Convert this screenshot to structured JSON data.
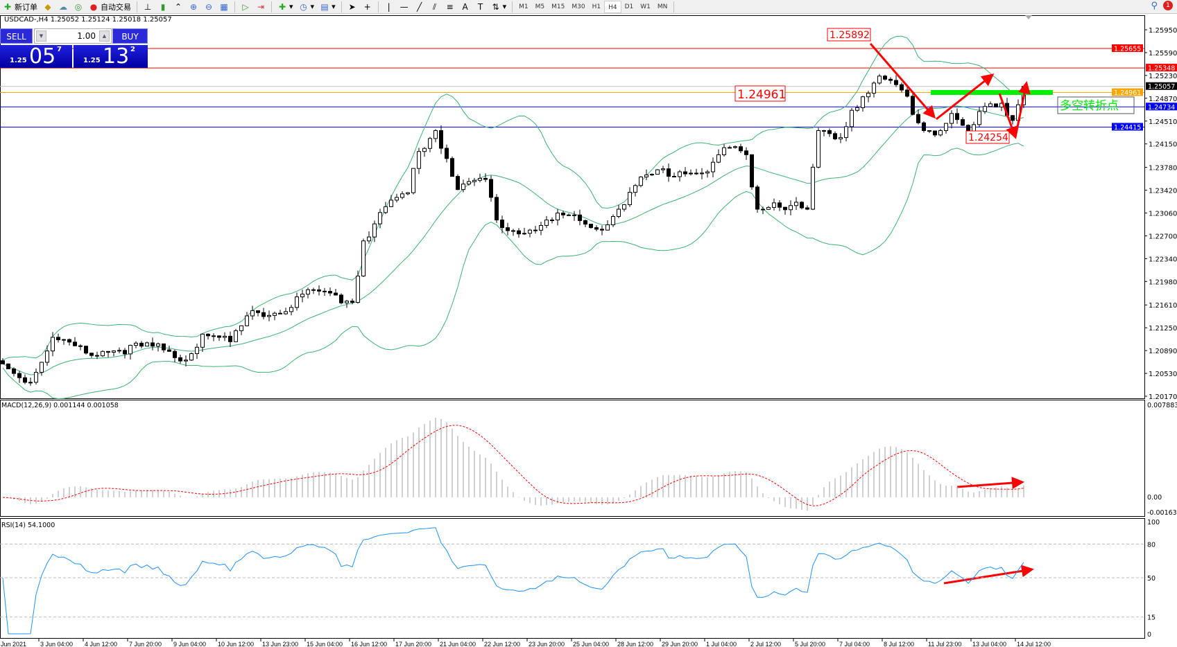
{
  "toolbar": {
    "new_order": "新订单",
    "auto_trading": "自动交易",
    "timeframes": [
      "M1",
      "M5",
      "M15",
      "M30",
      "H1",
      "H4",
      "D1",
      "W1",
      "MN"
    ],
    "active_timeframe": "H4",
    "notification_count": "1"
  },
  "chart": {
    "header": "USDCAD-,H4  1.25052 1.25124 1.25018 1.25057"
  },
  "trade_panel": {
    "sell_label": "SELL",
    "buy_label": "BUY",
    "lot": "1.00",
    "sell": {
      "prefix": "1.25",
      "big": "05",
      "sup": "7"
    },
    "buy": {
      "prefix": "1.25",
      "big": "13",
      "sup": "2"
    }
  },
  "annotations": {
    "high_label": "1.25892",
    "level_label": "1.24961",
    "low_label": "1.24254",
    "turning_point_label": "多空转折点",
    "arrow_color": "#ff0000",
    "turning_line_color": "#00ee00"
  },
  "chart_data": [
    {
      "type": "candlestick",
      "symbol": "USDCAD-",
      "timeframe": "H4",
      "close_path": [
        [
          0,
          1.2068
        ],
        [
          5,
          1.2039
        ],
        [
          9,
          1.211
        ],
        [
          15,
          1.2085
        ],
        [
          27,
          1.2096
        ],
        [
          33,
          1.2074
        ],
        [
          36,
          1.2115
        ],
        [
          41,
          1.2103
        ],
        [
          45,
          1.2152
        ],
        [
          50,
          1.2147
        ],
        [
          55,
          1.2185
        ],
        [
          63,
          1.2165
        ],
        [
          65,
          1.2262
        ],
        [
          69,
          1.2316
        ],
        [
          73,
          1.2338
        ],
        [
          75,
          1.2403
        ],
        [
          78,
          1.2436
        ],
        [
          80,
          1.2392
        ],
        [
          82,
          1.2343
        ],
        [
          87,
          1.2359
        ],
        [
          89,
          1.2295
        ],
        [
          93,
          1.2273
        ],
        [
          99,
          1.2295
        ],
        [
          100,
          1.2306
        ],
        [
          108,
          1.2279
        ],
        [
          111,
          1.2312
        ],
        [
          116,
          1.2366
        ],
        [
          122,
          1.2371
        ],
        [
          127,
          1.2371
        ],
        [
          130,
          1.2409
        ],
        [
          134,
          1.2398
        ],
        [
          136,
          1.2312
        ],
        [
          139,
          1.2322
        ],
        [
          145,
          1.2312
        ],
        [
          147,
          1.2436
        ],
        [
          151,
          1.2425
        ],
        [
          153,
          1.2468
        ],
        [
          157,
          1.2511
        ],
        [
          158,
          1.2522
        ],
        [
          162,
          1.25
        ],
        [
          166,
          1.2436
        ],
        [
          169,
          1.2436
        ],
        [
          171,
          1.2463
        ],
        [
          174,
          1.243
        ],
        [
          177,
          1.2474
        ],
        [
          180,
          1.2479
        ],
        [
          182,
          1.2452
        ],
        [
          184,
          1.25057
        ]
      ],
      "ylim": [
        1.2013,
        1.2618
      ],
      "price_ticks": [
        "1.25950",
        "1.25590",
        "1.25230",
        "1.24870",
        "1.24510",
        "1.24150",
        "1.23780",
        "1.23420",
        "1.23060",
        "1.22700",
        "1.22340",
        "1.21980",
        "1.21610",
        "1.21250",
        "1.20890",
        "1.20530",
        "1.20170"
      ],
      "levels": [
        {
          "price": "1.25655",
          "color": "#ff0000"
        },
        {
          "price": "1.25348",
          "color": "#ff0000"
        },
        {
          "price": "1.25057",
          "color": "#000000",
          "line": "#c0c0c0"
        },
        {
          "price": "1.24961",
          "color": "#ffa500"
        },
        {
          "price": "1.24734",
          "color": "#0000ff"
        },
        {
          "price": "1.24415",
          "color": "#0000ff"
        }
      ],
      "x_ticks": [
        "Jun 2021",
        "3 Jun 04:00",
        "4 Jun 12:00",
        "7 Jun 20:00",
        "9 Jun 04:00",
        "10 Jun 12:00",
        "13 Jun 23:00",
        "15 Jun 04:00",
        "16 Jun 12:00",
        "17 Jun 20:00",
        "21 Jun 04:00",
        "22 Jun 12:00",
        "23 Jun 20:00",
        "25 Jun 04:00",
        "28 Jun 12:00",
        "29 Jun 20:00",
        "1 Jul 04:00",
        "2 Jul 12:00",
        "5 Jul 20:00",
        "7 Jul 04:00",
        "8 Jul 12:00",
        "11 Jul 23:00",
        "13 Jul 04:00",
        "14 Jul 12:00"
      ],
      "bollinger_color": "#3cb371"
    },
    {
      "type": "bar",
      "title": "MACD(12,26,9) 0.001144 0.001058",
      "ylim": [
        -0.001638,
        0.007883
      ],
      "ticks": [
        "0.007883",
        "0.00",
        "-0.001638"
      ],
      "histogram_color": "#c0c0c0",
      "signal_color": "#ff0000"
    },
    {
      "type": "line",
      "title": "RSI(14) 54.1000",
      "ylim": [
        0,
        100
      ],
      "ticks": [
        "100",
        "80",
        "50",
        "15",
        "0"
      ],
      "levels": [
        80,
        50,
        15
      ],
      "line_color": "#1e90ff"
    }
  ]
}
